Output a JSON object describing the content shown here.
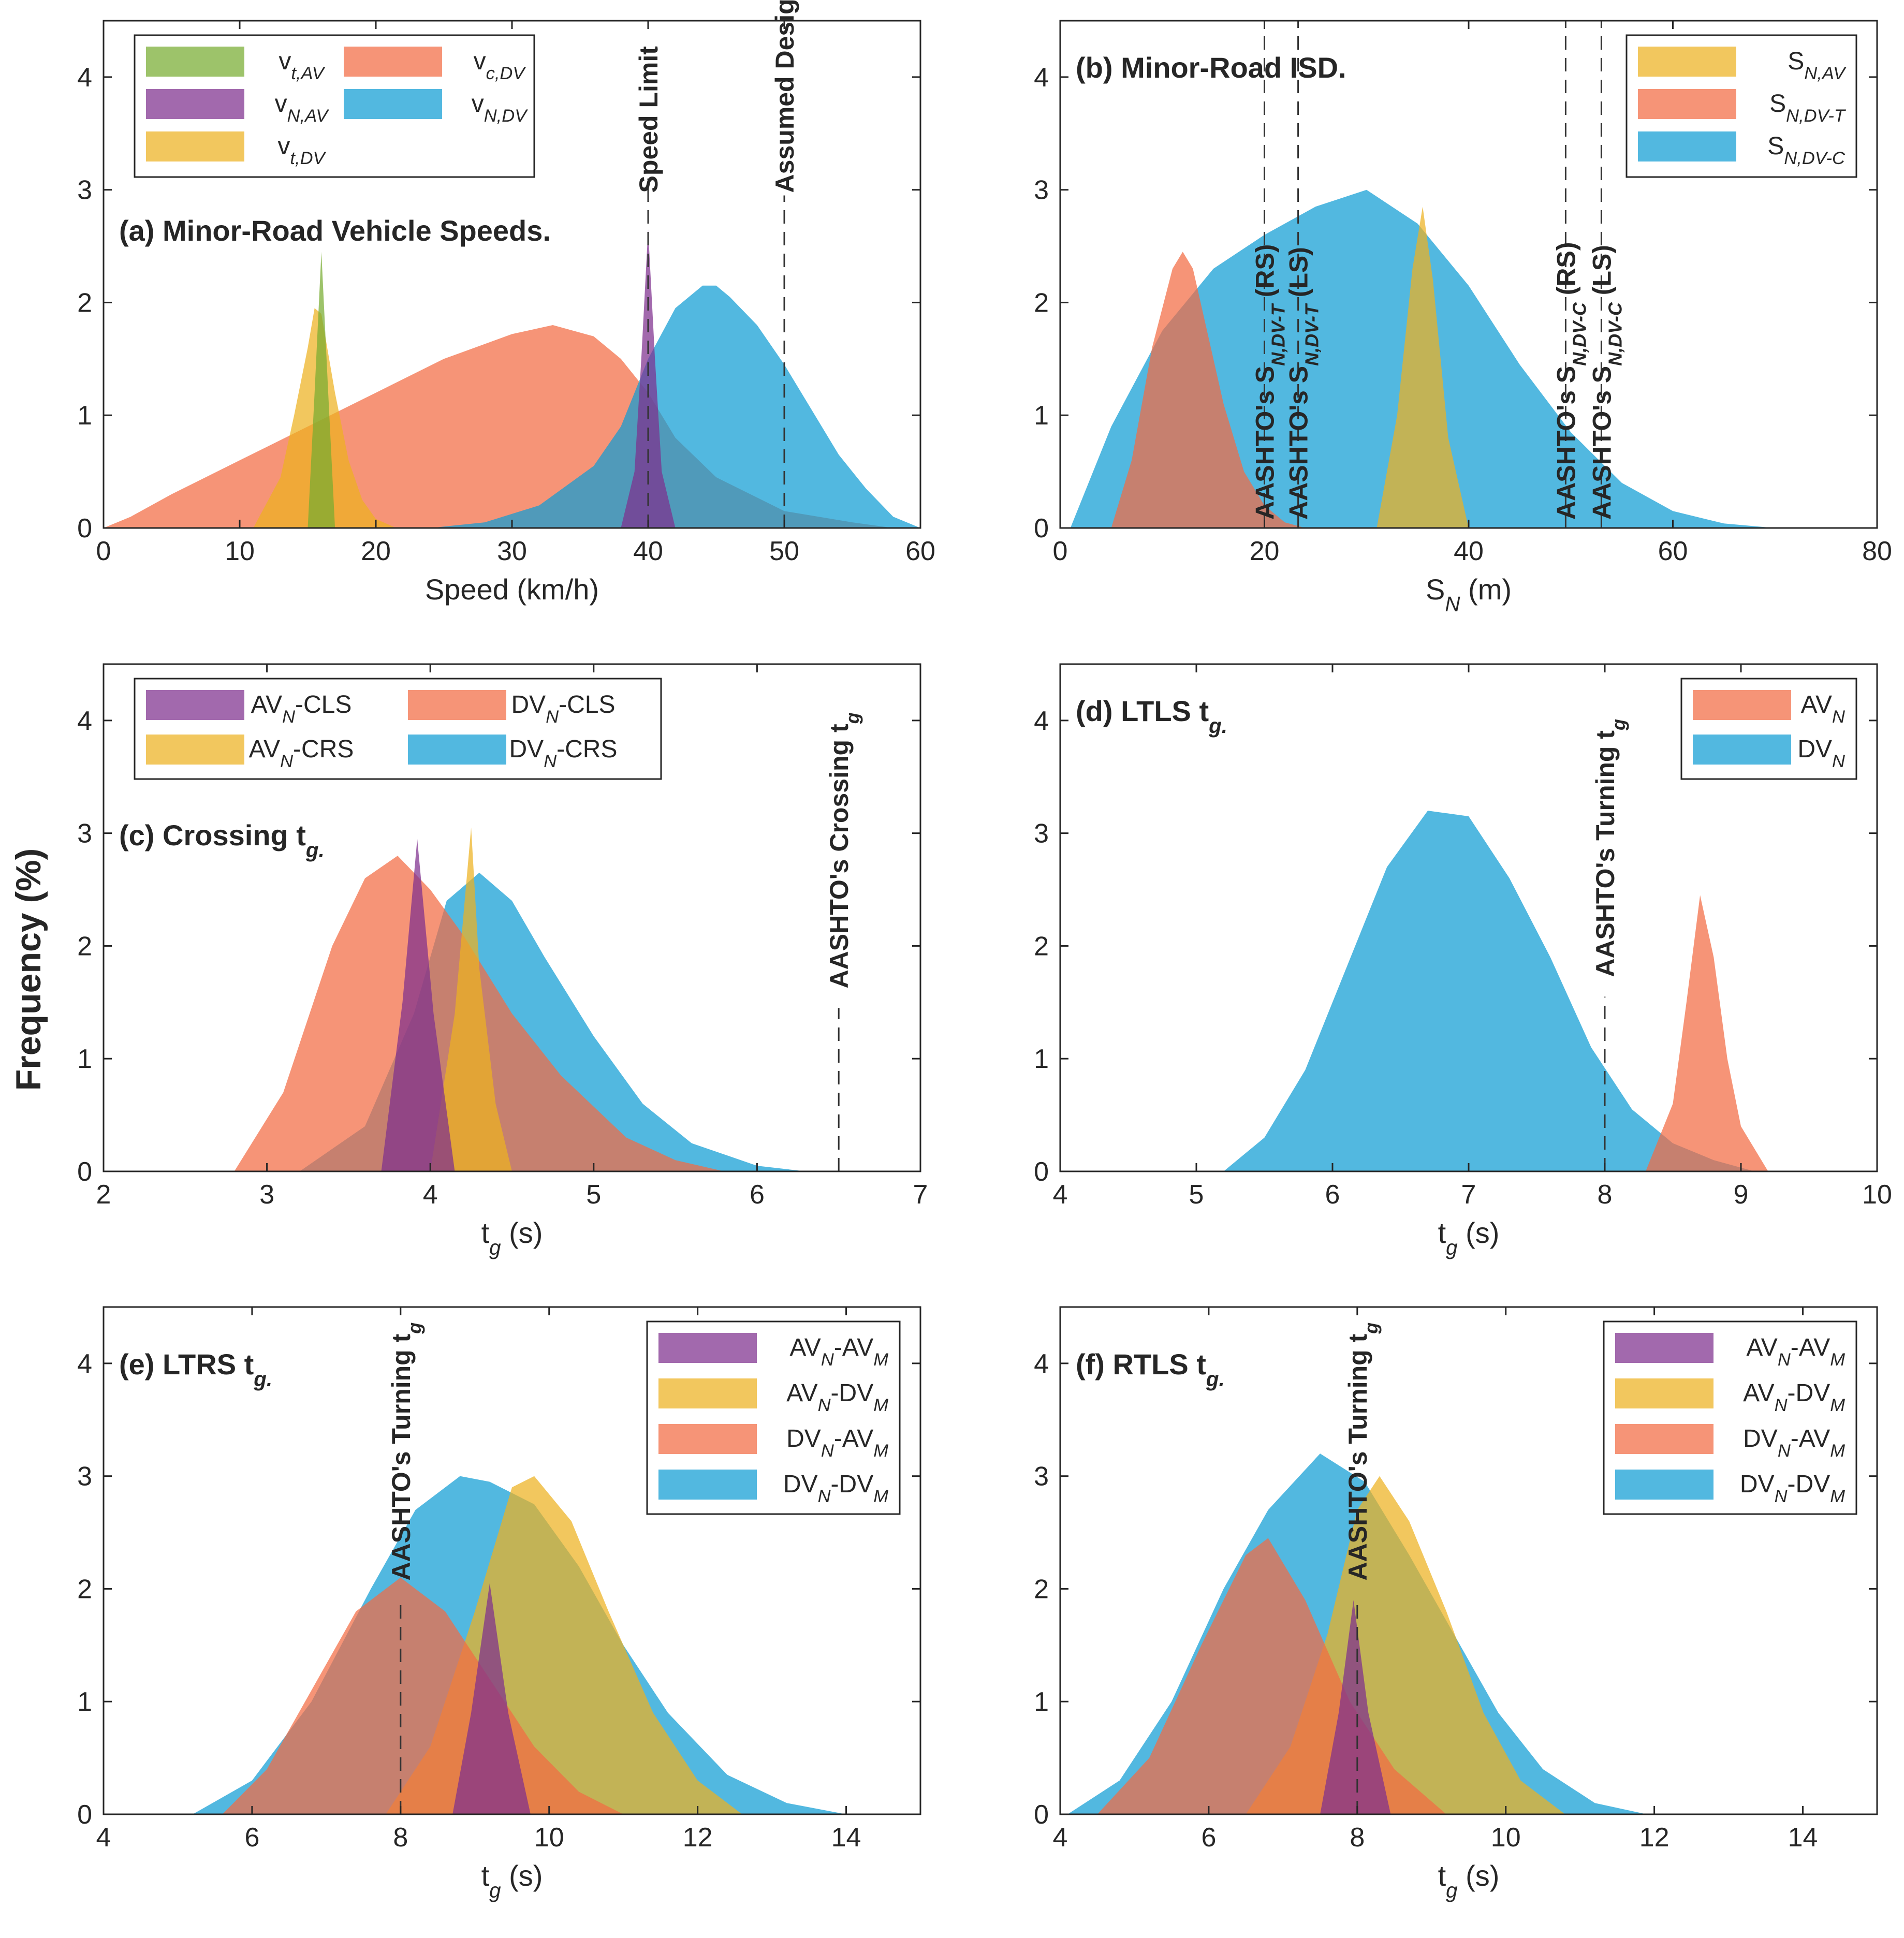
{
  "figure": {
    "ylabel": "Frequency (%)"
  },
  "colors": {
    "green": "#77AC30",
    "purple": "#7E2F8E",
    "yellow": "#EDB120",
    "orange": "#F26B43",
    "blue": "#0F9CD4"
  },
  "chart_data": [
    {
      "id": "a",
      "type": "area",
      "title": "(a) Minor-Road Vehicle Speeds.",
      "xlabel": "Speed (km/h)",
      "ylabel": "Frequency (%)",
      "xlim": [
        0,
        60
      ],
      "ylim": [
        0,
        4.5
      ],
      "xticks": [
        "0",
        "10",
        "20",
        "30",
        "40",
        "50",
        "60"
      ],
      "xtick_values": [
        0,
        10,
        20,
        30,
        40,
        50,
        60
      ],
      "yticks": [
        "0",
        "1",
        "2",
        "3",
        "4"
      ],
      "ytick_values": [
        0,
        1,
        2,
        3,
        4
      ],
      "legend_position": "top-left",
      "legend_layout": [
        [
          0,
          0
        ],
        [
          0,
          1
        ],
        [
          0,
          2
        ],
        [
          1,
          0
        ],
        [
          1,
          1
        ]
      ],
      "series": [
        {
          "name": "v_c,DV",
          "color": "orange",
          "x": [
            0,
            2,
            5,
            10,
            15,
            20,
            25,
            30,
            33,
            36,
            38,
            40,
            42,
            45,
            50,
            55,
            58
          ],
          "values": [
            0,
            0.1,
            0.3,
            0.6,
            0.9,
            1.2,
            1.5,
            1.72,
            1.8,
            1.7,
            1.5,
            1.2,
            0.8,
            0.45,
            0.15,
            0.05,
            0
          ]
        },
        {
          "name": "v_N,DV",
          "color": "blue",
          "x": [
            24,
            28,
            32,
            36,
            38,
            40,
            42,
            44,
            45,
            46,
            48,
            50,
            52,
            54,
            56,
            58,
            60
          ],
          "values": [
            0,
            0.05,
            0.2,
            0.55,
            0.9,
            1.5,
            1.95,
            2.15,
            2.15,
            2.05,
            1.8,
            1.45,
            1.05,
            0.65,
            0.35,
            0.1,
            0
          ]
        },
        {
          "name": "v_t,DV",
          "color": "yellow",
          "x": [
            11,
            13,
            14,
            15,
            15.5,
            16,
            17,
            18,
            19,
            20,
            21.5
          ],
          "values": [
            0,
            0.45,
            1.0,
            1.6,
            1.95,
            1.9,
            1.2,
            0.6,
            0.25,
            0.08,
            0
          ]
        },
        {
          "name": "v_t,AV",
          "color": "green",
          "x": [
            15,
            15.5,
            16,
            16.5,
            17
          ],
          "values": [
            0,
            1.2,
            2.45,
            1.2,
            0
          ]
        },
        {
          "name": "v_N,AV",
          "color": "purple",
          "x": [
            38,
            39,
            39.5,
            40,
            40.5,
            41,
            42
          ],
          "values": [
            0,
            0.5,
            1.5,
            2.65,
            1.5,
            0.5,
            0
          ]
        }
      ],
      "annotations": [
        {
          "text": "Speed Limit",
          "x": 40,
          "style": "ann"
        },
        {
          "text": "Assumed Design Speed",
          "x": 50,
          "style": "ann"
        }
      ]
    },
    {
      "id": "b",
      "type": "area",
      "title": "(b) Minor-Road ISD.",
      "xlabel": "S_N (m)",
      "ylabel": "",
      "xlim": [
        0,
        80
      ],
      "ylim": [
        0,
        4.5
      ],
      "xticks": [
        "0",
        "20",
        "40",
        "60",
        "80"
      ],
      "xtick_values": [
        0,
        20,
        40,
        60,
        80
      ],
      "yticks": [
        "0",
        "1",
        "2",
        "3",
        "4"
      ],
      "ytick_values": [
        0,
        1,
        2,
        3,
        4
      ],
      "legend_position": "top-right",
      "legend_layout": [
        [
          0,
          0
        ],
        [
          0,
          1
        ],
        [
          0,
          2
        ]
      ],
      "series": [
        {
          "name": "S_N,DV-C",
          "color": "blue",
          "x": [
            1,
            5,
            10,
            15,
            20,
            25,
            30,
            35,
            40,
            45,
            50,
            55,
            60,
            65,
            70
          ],
          "values": [
            0,
            0.9,
            1.75,
            2.3,
            2.6,
            2.85,
            3.0,
            2.7,
            2.15,
            1.45,
            0.85,
            0.4,
            0.15,
            0.04,
            0
          ]
        },
        {
          "name": "S_N,DV-T",
          "color": "orange",
          "x": [
            5,
            7,
            9,
            11,
            12,
            13,
            14,
            16,
            18,
            20,
            22,
            24
          ],
          "values": [
            0,
            0.6,
            1.6,
            2.3,
            2.45,
            2.3,
            1.9,
            1.1,
            0.5,
            0.2,
            0.05,
            0
          ]
        },
        {
          "name": "S_N,AV",
          "color": "yellow",
          "x": [
            31,
            33,
            34.5,
            35.5,
            36.5,
            38,
            40
          ],
          "values": [
            0,
            1.0,
            2.3,
            2.85,
            2.2,
            0.8,
            0
          ]
        }
      ],
      "annotations": [
        {
          "text": "AASHTO's S_N,DV-T (RS)",
          "x": 20,
          "style": "ann"
        },
        {
          "text": "AASHTO's S_N,DV-T (LS)",
          "x": 23.3,
          "style": "ann"
        },
        {
          "text": "AASHTO's S_N,DV-C (RS)",
          "x": 49.5,
          "style": "ann"
        },
        {
          "text": "AASHTO's S_N,DV-C (LS)",
          "x": 53,
          "style": "ann"
        }
      ]
    },
    {
      "id": "c",
      "type": "area",
      "title": "(c) Crossing t_g.",
      "xlabel": "t_g (s)",
      "ylabel": "",
      "xlim": [
        2,
        7
      ],
      "ylim": [
        0,
        4.5
      ],
      "xticks": [
        "2",
        "3",
        "4",
        "5",
        "6",
        "7"
      ],
      "xtick_values": [
        2,
        3,
        4,
        5,
        6,
        7
      ],
      "yticks": [
        "0",
        "1",
        "2",
        "3",
        "4"
      ],
      "ytick_values": [
        0,
        1,
        2,
        3,
        4
      ],
      "legend_position": "top-left",
      "legend_layout": [
        [
          0,
          0
        ],
        [
          0,
          1
        ],
        [
          1,
          0
        ],
        [
          1,
          1
        ]
      ],
      "series": [
        {
          "name": "DV_N-CRS",
          "color": "blue",
          "x": [
            3.2,
            3.6,
            3.9,
            4.1,
            4.3,
            4.5,
            4.7,
            5.0,
            5.3,
            5.6,
            6.0,
            6.3
          ],
          "values": [
            0,
            0.4,
            1.4,
            2.4,
            2.65,
            2.4,
            1.9,
            1.2,
            0.6,
            0.25,
            0.05,
            0
          ]
        },
        {
          "name": "DV_N-CLS",
          "color": "orange",
          "x": [
            2.8,
            3.1,
            3.4,
            3.6,
            3.8,
            4.0,
            4.2,
            4.5,
            4.8,
            5.2,
            5.5,
            5.8
          ],
          "values": [
            0,
            0.7,
            2.0,
            2.6,
            2.8,
            2.5,
            2.1,
            1.4,
            0.85,
            0.3,
            0.1,
            0
          ]
        },
        {
          "name": "AV_N-CRS",
          "color": "yellow",
          "x": [
            4.0,
            4.15,
            4.25,
            4.3,
            4.4,
            4.5
          ],
          "values": [
            0,
            1.4,
            3.05,
            1.8,
            0.6,
            0
          ]
        },
        {
          "name": "AV_N-CLS",
          "color": "purple",
          "x": [
            3.7,
            3.83,
            3.92,
            4.02,
            4.15
          ],
          "values": [
            0,
            1.5,
            2.95,
            1.4,
            0
          ]
        }
      ],
      "annotations": [
        {
          "text": "AASHTO's Crossing t_g",
          "x": 6.5,
          "style": "ann"
        }
      ]
    },
    {
      "id": "d",
      "type": "area",
      "title": "(d) LTLS t_g.",
      "xlabel": "t_g (s)",
      "ylabel": "",
      "xlim": [
        4,
        10
      ],
      "ylim": [
        0,
        4.5
      ],
      "xticks": [
        "4",
        "5",
        "6",
        "7",
        "8",
        "9",
        "10"
      ],
      "xtick_values": [
        4,
        5,
        6,
        7,
        8,
        9,
        10
      ],
      "yticks": [
        "0",
        "1",
        "2",
        "3",
        "4"
      ],
      "ytick_values": [
        0,
        1,
        2,
        3,
        4
      ],
      "legend_position": "top-right",
      "legend_layout": [
        [
          0,
          0
        ],
        [
          0,
          1
        ]
      ],
      "series": [
        {
          "name": "DV_N",
          "color": "blue",
          "x": [
            5.2,
            5.5,
            5.8,
            6.1,
            6.4,
            6.7,
            7.0,
            7.3,
            7.6,
            7.9,
            8.2,
            8.5,
            8.8,
            9.1
          ],
          "values": [
            0,
            0.3,
            0.9,
            1.8,
            2.7,
            3.2,
            3.15,
            2.6,
            1.9,
            1.1,
            0.55,
            0.25,
            0.1,
            0
          ]
        },
        {
          "name": "AV_N",
          "color": "orange",
          "x": [
            8.3,
            8.5,
            8.6,
            8.7,
            8.8,
            8.9,
            9.0,
            9.2
          ],
          "values": [
            0,
            0.6,
            1.5,
            2.45,
            1.9,
            1.0,
            0.4,
            0
          ]
        }
      ],
      "annotations": [
        {
          "text": "AASHTO's Turning t_g",
          "x": 8,
          "style": "ann"
        }
      ]
    },
    {
      "id": "e",
      "type": "area",
      "title": "(e) LTRS t_g.",
      "xlabel": "t_g (s)",
      "ylabel": "",
      "xlim": [
        4,
        15
      ],
      "ylim": [
        0,
        4.5
      ],
      "xticks": [
        "4",
        "6",
        "8",
        "10",
        "12",
        "14"
      ],
      "xtick_values": [
        4,
        6,
        8,
        10,
        12,
        14
      ],
      "yticks": [
        "0",
        "1",
        "2",
        "3",
        "4"
      ],
      "ytick_values": [
        0,
        1,
        2,
        3,
        4
      ],
      "legend_position": "top-right",
      "legend_layout": [
        [
          0,
          0
        ],
        [
          0,
          1
        ],
        [
          0,
          2
        ],
        [
          0,
          3
        ]
      ],
      "series": [
        {
          "name": "DV_N-DV_M",
          "color": "blue",
          "x": [
            5.2,
            6.0,
            6.8,
            7.6,
            8.2,
            8.8,
            9.2,
            9.8,
            10.4,
            11.0,
            11.6,
            12.4,
            13.2,
            14.0
          ],
          "values": [
            0,
            0.3,
            1.0,
            2.0,
            2.7,
            3.0,
            2.95,
            2.75,
            2.2,
            1.5,
            0.9,
            0.35,
            0.1,
            0
          ]
        },
        {
          "name": "AV_N-DV_M",
          "color": "yellow",
          "x": [
            7.8,
            8.4,
            9.0,
            9.5,
            9.8,
            10.3,
            10.8,
            11.4,
            12.0,
            12.6
          ],
          "values": [
            0,
            0.6,
            1.8,
            2.9,
            3.0,
            2.6,
            1.8,
            0.9,
            0.3,
            0
          ]
        },
        {
          "name": "DV_N-AV_M",
          "color": "orange",
          "x": [
            5.6,
            6.2,
            6.8,
            7.4,
            8.0,
            8.6,
            9.2,
            9.8,
            10.4,
            11.0
          ],
          "values": [
            0,
            0.4,
            1.1,
            1.8,
            2.1,
            1.8,
            1.2,
            0.6,
            0.2,
            0
          ]
        },
        {
          "name": "AV_N-AV_M",
          "color": "purple",
          "x": [
            8.7,
            8.95,
            9.2,
            9.45,
            9.75
          ],
          "values": [
            0,
            0.9,
            2.05,
            0.9,
            0
          ]
        }
      ],
      "annotations": [
        {
          "text": "AASHTO's Turning t_g",
          "x": 8,
          "style": "ann"
        }
      ]
    },
    {
      "id": "f",
      "type": "area",
      "title": "(f) RTLS t_g.",
      "xlabel": "t_g (s)",
      "ylabel": "",
      "xlim": [
        4,
        15
      ],
      "ylim": [
        0,
        4.5
      ],
      "xticks": [
        "4",
        "6",
        "8",
        "10",
        "12",
        "14"
      ],
      "xtick_values": [
        4,
        6,
        8,
        10,
        12,
        14
      ],
      "yticks": [
        "0",
        "1",
        "2",
        "3",
        "4"
      ],
      "ytick_values": [
        0,
        1,
        2,
        3,
        4
      ],
      "legend_position": "top-right",
      "legend_layout": [
        [
          0,
          0
        ],
        [
          0,
          1
        ],
        [
          0,
          2
        ],
        [
          0,
          3
        ]
      ],
      "series": [
        {
          "name": "DV_N-DV_M",
          "color": "blue",
          "x": [
            4.1,
            4.8,
            5.5,
            6.2,
            6.8,
            7.5,
            8.1,
            8.7,
            9.3,
            9.9,
            10.5,
            11.2,
            11.9
          ],
          "values": [
            0,
            0.3,
            1.0,
            2.0,
            2.7,
            3.2,
            2.95,
            2.3,
            1.6,
            0.9,
            0.4,
            0.1,
            0
          ]
        },
        {
          "name": "AV_N-DV_M",
          "color": "yellow",
          "x": [
            6.5,
            7.1,
            7.6,
            8.0,
            8.3,
            8.7,
            9.2,
            9.7,
            10.2,
            10.8
          ],
          "values": [
            0,
            0.6,
            1.6,
            2.7,
            3.0,
            2.6,
            1.8,
            0.9,
            0.3,
            0
          ]
        },
        {
          "name": "DV_N-AV_M",
          "color": "orange",
          "x": [
            4.5,
            5.2,
            5.9,
            6.5,
            6.8,
            7.3,
            7.9,
            8.5,
            9.2
          ],
          "values": [
            0,
            0.5,
            1.5,
            2.3,
            2.45,
            1.9,
            1.0,
            0.4,
            0
          ]
        },
        {
          "name": "AV_N-AV_M",
          "color": "purple",
          "x": [
            7.5,
            7.75,
            7.95,
            8.15,
            8.45
          ],
          "values": [
            0,
            0.9,
            1.9,
            0.9,
            0
          ]
        }
      ],
      "annotations": [
        {
          "text": "AASHTO's Turning t_g",
          "x": 8,
          "style": "ann"
        }
      ]
    }
  ]
}
